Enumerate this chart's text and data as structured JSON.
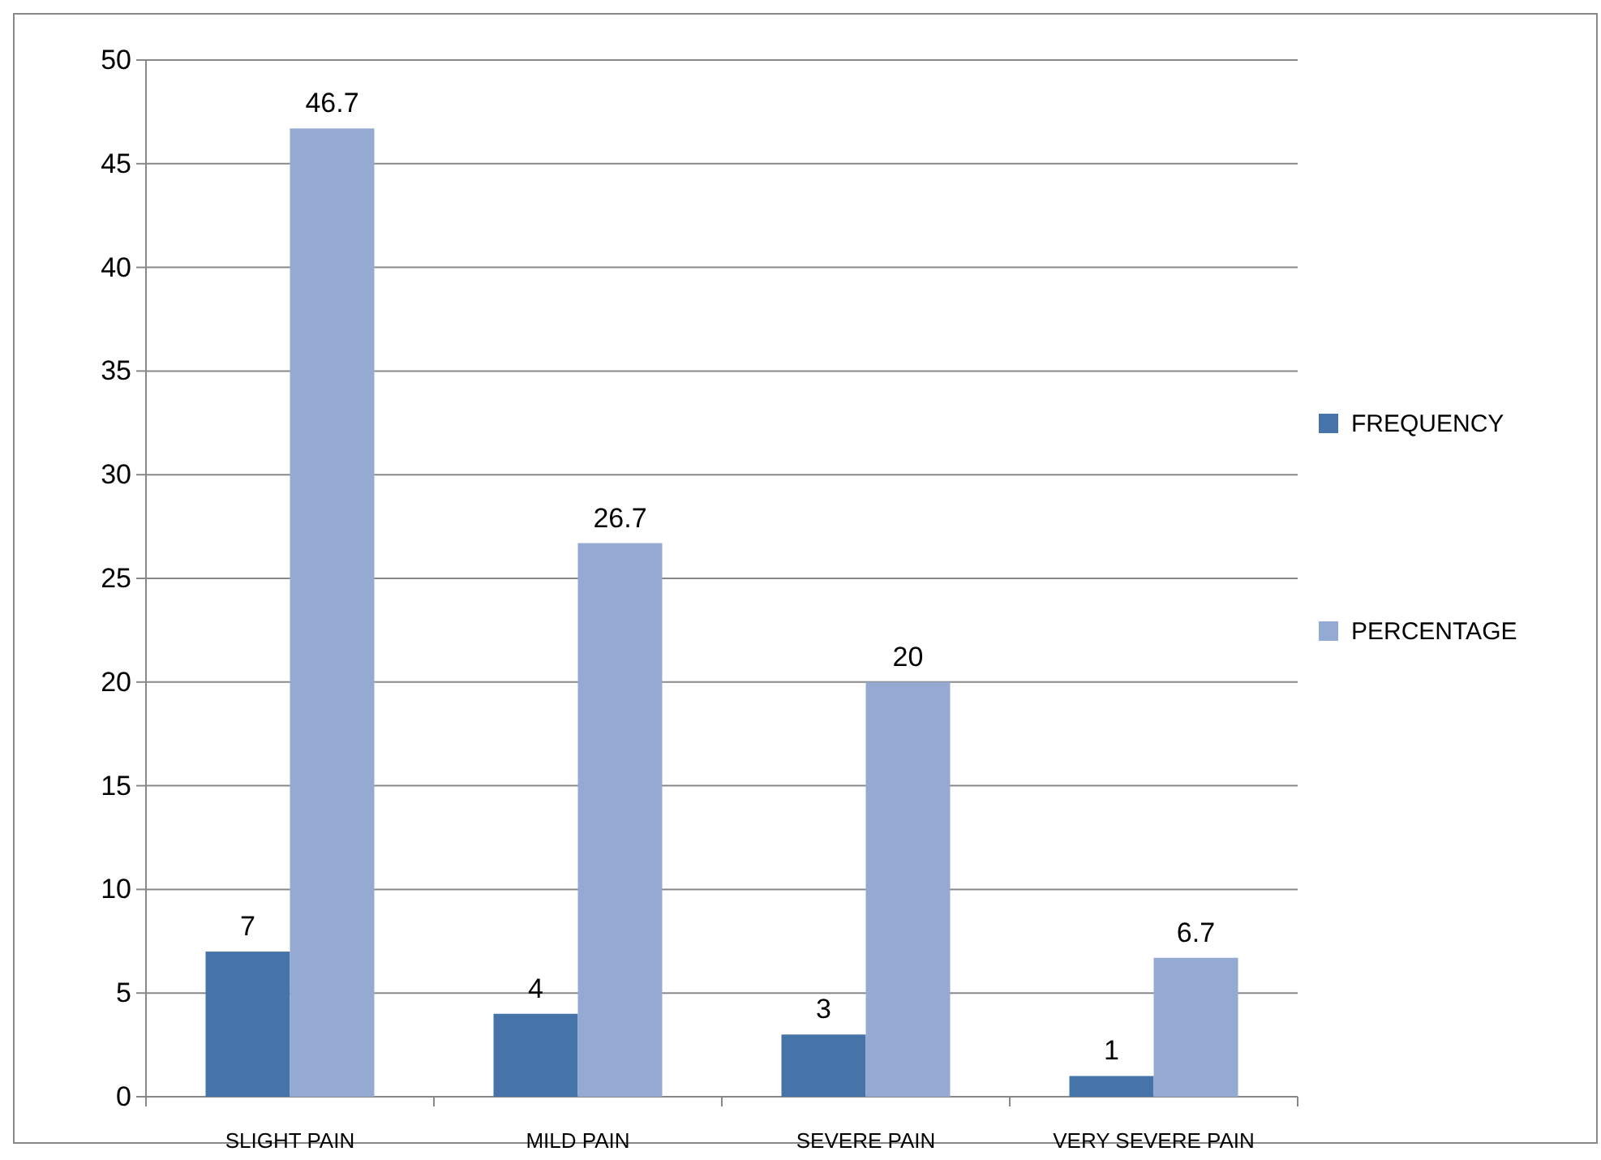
{
  "chart_data": {
    "type": "bar",
    "categories": [
      "SLIGHT PAIN",
      "MILD PAIN",
      "SEVERE PAIN",
      "VERY SEVERE PAIN"
    ],
    "series": [
      {
        "name": "FREQUENCY",
        "color": "#4674a8",
        "values": [
          7,
          4,
          3,
          1
        ]
      },
      {
        "name": "PERCENTAGE",
        "color": "#94aad3",
        "values": [
          46.7,
          26.7,
          20,
          6.7
        ]
      }
    ],
    "ylim": [
      0,
      50
    ],
    "yticks": [
      0,
      5,
      10,
      15,
      20,
      25,
      30,
      35,
      40,
      45,
      50
    ],
    "grid": "y",
    "legend": "right",
    "data_labels": true
  }
}
